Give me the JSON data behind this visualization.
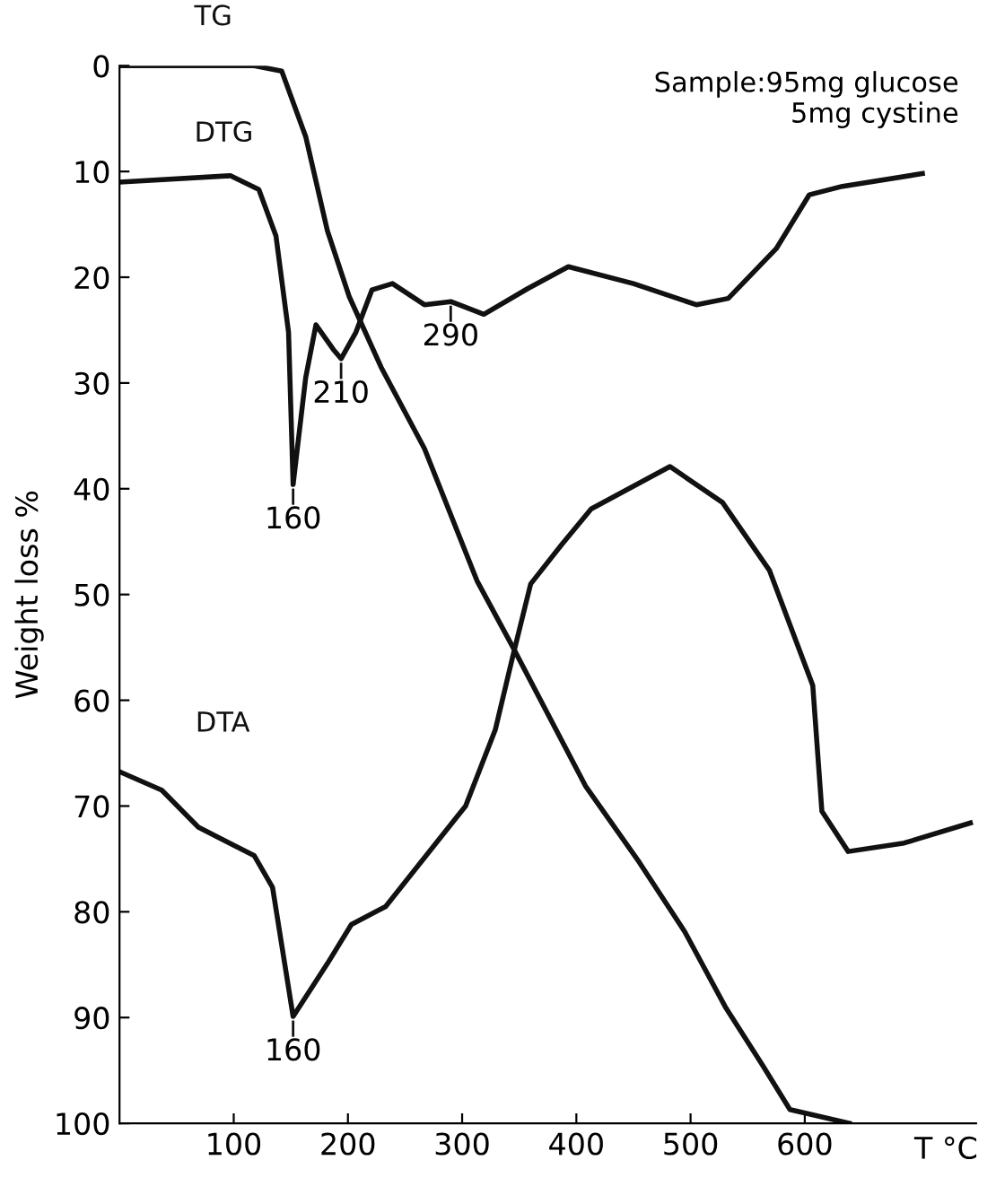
{
  "chart_data": {
    "type": "line",
    "ylabel": "Weight loss %",
    "xlabel": "T °C",
    "xlim": [
      0,
      750
    ],
    "ylim": [
      100,
      0
    ],
    "xticks": [
      100,
      200,
      300,
      400,
      500,
      600
    ],
    "yticks": [
      0,
      10,
      20,
      30,
      40,
      50,
      60,
      70,
      80,
      90,
      100
    ],
    "grid": false,
    "legend": false,
    "marker": "none",
    "line_style": "solid",
    "series": [
      {
        "name": "TG",
        "color": "#111111",
        "x": [
          0,
          118,
          142,
          163,
          182,
          201,
          229,
          267,
          313,
          344,
          408,
          455,
          495,
          531,
          563,
          587,
          639
        ],
        "values": [
          0,
          0,
          0.5,
          6.7,
          15.6,
          21.8,
          28.5,
          36.2,
          48.7,
          54.9,
          68.1,
          75.3,
          81.9,
          89.1,
          94.5,
          98.7,
          100
        ]
      },
      {
        "name": "DTG",
        "color": "#111111",
        "x": [
          0,
          97,
          122,
          137,
          148,
          152,
          163,
          172,
          187,
          194,
          207,
          221,
          239,
          267,
          290,
          319,
          357,
          393,
          450,
          505,
          533,
          575,
          604,
          633,
          703
        ],
        "values": [
          11,
          10.4,
          11.7,
          16.1,
          25.2,
          39.6,
          29.5,
          24.5,
          26.8,
          27.7,
          25.2,
          21.2,
          20.6,
          22.6,
          22.3,
          23.5,
          21.1,
          19,
          20.6,
          22.6,
          22,
          17.3,
          12.2,
          11.4,
          10.2
        ]
      },
      {
        "name": "DTA",
        "color": "#111111",
        "x": [
          1,
          37,
          69,
          118,
          134,
          152,
          182,
          203,
          233,
          272,
          303,
          329,
          344,
          360,
          387,
          413,
          482,
          528,
          569,
          607,
          615,
          638,
          687,
          745
        ],
        "values": [
          66.8,
          68.5,
          72,
          74.7,
          77.7,
          89.9,
          84.9,
          81.2,
          79.5,
          74.2,
          70,
          62.8,
          56,
          49,
          45.3,
          41.9,
          37.9,
          41.3,
          47.7,
          58.6,
          70.5,
          74.3,
          73.5,
          71.6
        ]
      }
    ],
    "annotations": [
      {
        "text": "160",
        "x": 152,
        "y": 39.6
      },
      {
        "text": "210",
        "x": 194,
        "y": 27.7
      },
      {
        "text": "290",
        "x": 290,
        "y": 22.3
      },
      {
        "text": "160",
        "x": 152,
        "y": 89.9
      },
      "Sample:95mg glucose\n5mg cystine"
    ]
  }
}
